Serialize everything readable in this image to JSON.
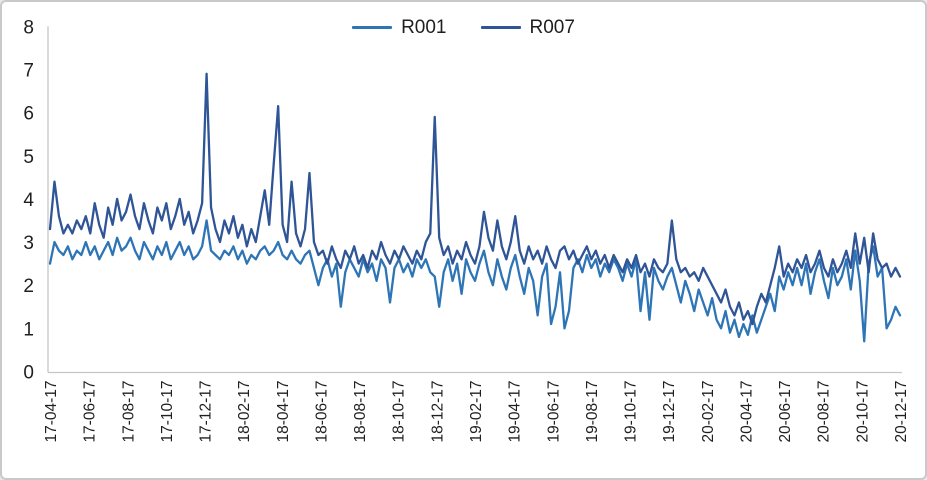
{
  "chart_data": {
    "type": "line",
    "title": "",
    "xlabel": "",
    "ylabel": "",
    "ylim": [
      0,
      8
    ],
    "grid": false,
    "legend_position": "top-center",
    "axis_line_color": "#c6c6c6",
    "y_tick_labels": [
      "0",
      "1",
      "2",
      "3",
      "4",
      "5",
      "6",
      "7",
      "8"
    ],
    "x_tick_labels": [
      "17-04-17",
      "17-06-17",
      "17-08-17",
      "17-10-17",
      "17-12-17",
      "18-02-17",
      "18-04-17",
      "18-06-17",
      "18-08-17",
      "18-10-17",
      "18-12-17",
      "19-02-17",
      "19-04-17",
      "19-06-17",
      "19-08-17",
      "19-10-17",
      "19-12-17",
      "20-02-17",
      "20-04-17",
      "20-06-17",
      "20-08-17",
      "20-10-17",
      "20-12-17"
    ],
    "series": [
      {
        "name": "R001",
        "color": "#2E75B6",
        "values": [
          2.5,
          3.0,
          2.8,
          2.7,
          2.9,
          2.6,
          2.8,
          2.7,
          3.0,
          2.7,
          2.9,
          2.6,
          2.8,
          3.0,
          2.7,
          3.1,
          2.8,
          2.9,
          3.1,
          2.8,
          2.6,
          3.0,
          2.8,
          2.6,
          2.9,
          2.7,
          3.0,
          2.6,
          2.8,
          3.0,
          2.7,
          2.9,
          2.6,
          2.7,
          2.9,
          3.5,
          2.8,
          2.7,
          2.6,
          2.8,
          2.7,
          2.9,
          2.6,
          2.8,
          2.5,
          2.7,
          2.6,
          2.8,
          2.9,
          2.7,
          2.8,
          3.0,
          2.7,
          2.6,
          2.8,
          2.6,
          2.5,
          2.7,
          2.8,
          2.4,
          2.0,
          2.4,
          2.6,
          2.2,
          2.5,
          1.5,
          2.3,
          2.6,
          2.4,
          2.2,
          2.6,
          2.3,
          2.5,
          2.1,
          2.6,
          2.4,
          1.6,
          2.4,
          2.6,
          2.3,
          2.5,
          2.2,
          2.6,
          2.4,
          2.6,
          2.3,
          2.2,
          1.5,
          2.3,
          2.6,
          2.1,
          2.5,
          1.8,
          2.6,
          2.3,
          2.1,
          2.5,
          2.8,
          2.3,
          2.0,
          2.6,
          2.2,
          1.9,
          2.4,
          2.7,
          2.2,
          1.8,
          2.4,
          2.1,
          1.3,
          2.2,
          2.5,
          1.1,
          1.5,
          2.3,
          1.0,
          1.4,
          2.4,
          2.6,
          2.3,
          2.7,
          2.4,
          2.6,
          2.2,
          2.5,
          2.3,
          2.6,
          2.4,
          2.1,
          2.5,
          2.2,
          2.6,
          1.4,
          2.3,
          1.2,
          2.4,
          2.1,
          1.9,
          2.2,
          2.4,
          2.0,
          1.6,
          2.1,
          1.8,
          1.4,
          1.9,
          1.6,
          1.3,
          1.7,
          1.2,
          1.0,
          1.4,
          0.9,
          1.2,
          0.8,
          1.1,
          0.85,
          1.3,
          0.9,
          1.2,
          1.5,
          1.8,
          1.4,
          2.2,
          1.9,
          2.3,
          2.0,
          2.4,
          2.0,
          2.5,
          1.8,
          2.3,
          2.6,
          2.1,
          1.7,
          2.4,
          2.0,
          2.2,
          2.6,
          1.9,
          2.8,
          2.1,
          0.7,
          2.5,
          2.9,
          2.2,
          2.4,
          1.0,
          1.2,
          1.5,
          1.3
        ]
      },
      {
        "name": "R007",
        "color": "#2F5597",
        "values": [
          3.3,
          4.4,
          3.6,
          3.2,
          3.4,
          3.2,
          3.5,
          3.3,
          3.6,
          3.2,
          3.9,
          3.4,
          3.1,
          3.8,
          3.4,
          4.0,
          3.5,
          3.7,
          4.1,
          3.6,
          3.3,
          3.9,
          3.5,
          3.2,
          3.8,
          3.5,
          3.9,
          3.3,
          3.6,
          4.0,
          3.4,
          3.7,
          3.2,
          3.5,
          3.9,
          6.9,
          3.8,
          3.3,
          3.0,
          3.5,
          3.2,
          3.6,
          3.1,
          3.4,
          2.9,
          3.3,
          3.0,
          3.6,
          4.2,
          3.4,
          4.8,
          6.15,
          3.4,
          3.0,
          4.4,
          3.2,
          2.9,
          3.3,
          4.6,
          3.0,
          2.7,
          2.8,
          2.5,
          2.9,
          2.6,
          2.4,
          2.8,
          2.6,
          2.9,
          2.5,
          2.7,
          2.4,
          2.8,
          2.6,
          3.0,
          2.7,
          2.5,
          2.8,
          2.6,
          2.9,
          2.7,
          2.5,
          2.8,
          2.6,
          3.0,
          3.2,
          5.9,
          3.1,
          2.7,
          2.9,
          2.5,
          2.8,
          2.6,
          3.0,
          2.7,
          2.5,
          2.9,
          3.7,
          3.1,
          2.8,
          3.5,
          2.9,
          2.6,
          3.0,
          3.6,
          2.8,
          2.5,
          2.9,
          2.6,
          2.8,
          2.5,
          2.9,
          2.6,
          2.4,
          2.8,
          2.9,
          2.6,
          2.8,
          2.5,
          2.7,
          2.9,
          2.6,
          2.8,
          2.5,
          2.7,
          2.4,
          2.7,
          2.5,
          2.3,
          2.6,
          2.4,
          2.7,
          2.3,
          2.5,
          2.2,
          2.6,
          2.4,
          2.3,
          2.5,
          3.5,
          2.6,
          2.3,
          2.4,
          2.2,
          2.3,
          2.1,
          2.4,
          2.2,
          2.0,
          1.8,
          1.6,
          1.9,
          1.5,
          1.3,
          1.6,
          1.2,
          1.4,
          1.1,
          1.5,
          1.8,
          1.6,
          2.0,
          2.4,
          2.9,
          2.2,
          2.5,
          2.3,
          2.6,
          2.4,
          2.7,
          2.3,
          2.5,
          2.8,
          2.4,
          2.2,
          2.6,
          2.3,
          2.5,
          2.8,
          2.4,
          3.2,
          2.5,
          3.1,
          2.3,
          3.2,
          2.6,
          2.4,
          2.5,
          2.2,
          2.4,
          2.2
        ]
      }
    ]
  }
}
